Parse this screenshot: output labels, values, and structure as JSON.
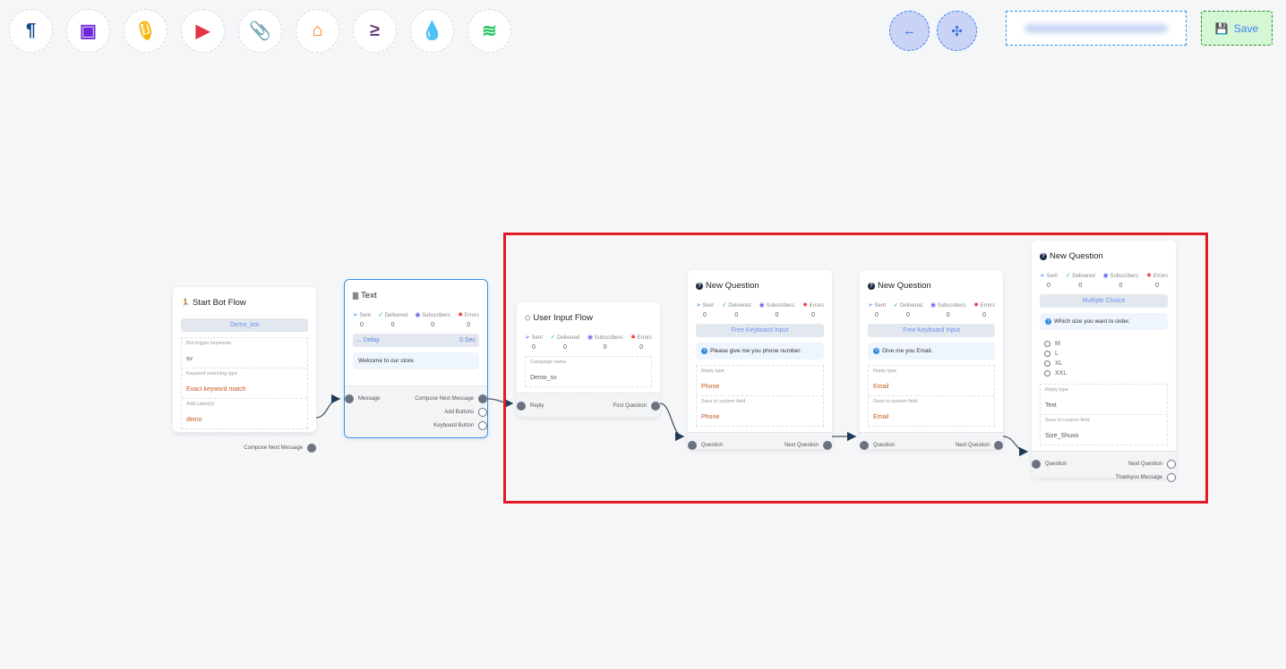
{
  "toolbar": {
    "items": [
      {
        "name": "text-icon",
        "glyph": "¶",
        "color": "#0b4a8a"
      },
      {
        "name": "image-icon",
        "glyph": "▣",
        "color": "#6d28d9"
      },
      {
        "name": "microphone-icon",
        "glyph": "🎙",
        "color": "#f5b50b"
      },
      {
        "name": "youtube-icon",
        "glyph": "▶",
        "color": "#e03546"
      },
      {
        "name": "paperclip-icon",
        "glyph": "📎",
        "color": "#1e9e5a"
      },
      {
        "name": "store-icon",
        "glyph": "⌂",
        "color": "#f97316"
      },
      {
        "name": "greater-equal-icon",
        "glyph": "≥",
        "color": "#6b3a7a"
      },
      {
        "name": "drop-icon",
        "glyph": "💧",
        "color": "#c8102e"
      },
      {
        "name": "stack-icon",
        "glyph": "≋",
        "color": "#22c55e"
      }
    ],
    "back_icon": "arrow-left-icon",
    "compress_icon": "compress-icon",
    "save_label": "Save"
  },
  "stat_labels": {
    "sent": "Sent",
    "delivered": "Delivered",
    "subscribers": "Subscribers",
    "errors": "Errors"
  },
  "nodes": [
    {
      "id": "start",
      "title": "Start Bot Flow",
      "icon": "🏃",
      "pill": "Demo_bot",
      "fields": [
        {
          "label": "Bot trigger keywords",
          "value": "sv",
          "plain": true
        },
        {
          "label": "Keyword matching type",
          "value": "Exact keyword match"
        },
        {
          "label": "Add Label(s)",
          "value": "demo"
        }
      ],
      "outputs": [
        {
          "label": "Compose Next Message",
          "filled": true
        }
      ]
    },
    {
      "id": "text",
      "title": "Text",
      "icon": "▇",
      "stats": [
        0,
        0,
        0,
        0
      ],
      "delay": {
        "label": "... Delay",
        "value": "0 Sec"
      },
      "message": "Welcome to our store.",
      "input": "Message",
      "outputs": [
        {
          "label": "Compose Next Message",
          "filled": true
        },
        {
          "label": "Add Buttons",
          "filled": false
        },
        {
          "label": "Keyboard Button",
          "filled": false
        }
      ]
    },
    {
      "id": "user-input",
      "title": "User Input Flow",
      "icon": "⛭",
      "stats": [
        0,
        0,
        0,
        0
      ],
      "fields": [
        {
          "label": "Campaign name",
          "value": "Demo_sv",
          "plain": true
        }
      ],
      "input": "Reply",
      "outputs": [
        {
          "label": "First Question",
          "filled": true
        }
      ]
    },
    {
      "id": "q1",
      "title": "New Question",
      "question": true,
      "stats": [
        0,
        0,
        0,
        0
      ],
      "pill": "Free Keyboard Input",
      "message": "Please give me you phone number.",
      "fields": [
        {
          "label": "Reply type",
          "value": "Phone"
        },
        {
          "label": "Save to system field",
          "value": "Phone"
        }
      ],
      "input": "Question",
      "outputs": [
        {
          "label": "Next Question",
          "filled": true
        }
      ]
    },
    {
      "id": "q2",
      "title": "New Question",
      "question": true,
      "stats": [
        0,
        0,
        0,
        0
      ],
      "pill": "Free Keyboard Input",
      "message": "Give me you Email.",
      "fields": [
        {
          "label": "Reply type",
          "value": "Email"
        },
        {
          "label": "Save to system field",
          "value": "Email"
        }
      ],
      "input": "Question",
      "outputs": [
        {
          "label": "Next Question",
          "filled": true
        }
      ]
    },
    {
      "id": "q3",
      "title": "New Question",
      "question": true,
      "stats": [
        0,
        0,
        0,
        0
      ],
      "pill": "Multiple Choice",
      "message": "Which size you want to order.",
      "options": [
        "M",
        "L",
        "XL",
        "XXL"
      ],
      "fields": [
        {
          "label": "Reply type",
          "value": "Text",
          "plain": true
        },
        {
          "label": "Save to custom field",
          "value": "Size_Shuvo",
          "plain": true
        }
      ],
      "input": "Question",
      "outputs": [
        {
          "label": "Next Question",
          "filled": false
        },
        {
          "label": "Thankyou Message",
          "filled": false
        }
      ]
    }
  ],
  "colors": {
    "accent": "#2b95f0",
    "highlight": "#e31b23",
    "save_bg": "#d4f7d6"
  }
}
